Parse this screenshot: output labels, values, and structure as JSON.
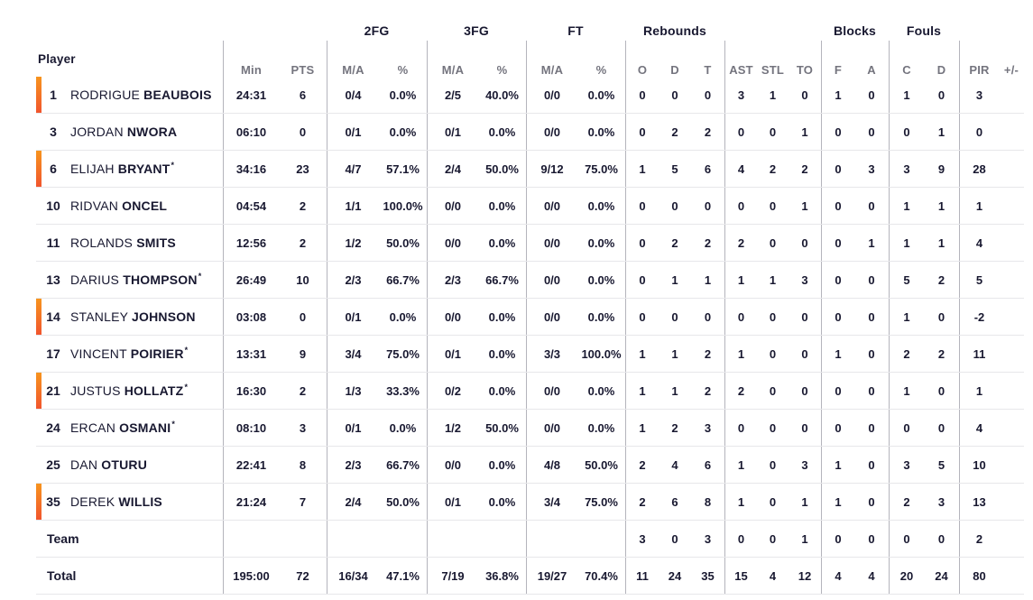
{
  "header": {
    "player_label": "Player",
    "groups": {
      "fg2": "2FG",
      "fg3": "3FG",
      "ft": "FT",
      "rebounds": "Rebounds",
      "blocks": "Blocks",
      "fouls": "Fouls"
    },
    "columns": [
      "Min",
      "PTS",
      "M/A",
      "%",
      "M/A",
      "%",
      "M/A",
      "%",
      "O",
      "D",
      "T",
      "AST",
      "STL",
      "TO",
      "F",
      "A",
      "C",
      "D",
      "PIR",
      "+/-"
    ]
  },
  "starter_mark": "*",
  "colors": {
    "accent_gradient_top": "#f7941e",
    "accent_gradient_bottom": "#f1552d",
    "text_dark": "#181830",
    "text_gray": "#74747e",
    "divider_vertical": "#b4b4bc",
    "divider_horizontal": "#e7e7ea"
  },
  "rows": [
    {
      "type": "player",
      "number": "1",
      "first": "RODRIGUE",
      "last": "BEAUBOIS",
      "starter": false,
      "on_court": true,
      "stats": [
        "24:31",
        "6",
        "0/4",
        "0.0%",
        "2/5",
        "40.0%",
        "0/0",
        "0.0%",
        "0",
        "0",
        "0",
        "3",
        "1",
        "0",
        "1",
        "0",
        "1",
        "0",
        "3",
        ""
      ]
    },
    {
      "type": "player",
      "number": "3",
      "first": "JORDAN",
      "last": "NWORA",
      "starter": false,
      "on_court": false,
      "stats": [
        "06:10",
        "0",
        "0/1",
        "0.0%",
        "0/1",
        "0.0%",
        "0/0",
        "0.0%",
        "0",
        "2",
        "2",
        "0",
        "0",
        "1",
        "0",
        "0",
        "0",
        "1",
        "0",
        ""
      ]
    },
    {
      "type": "player",
      "number": "6",
      "first": "ELIJAH",
      "last": "BRYANT",
      "starter": true,
      "on_court": true,
      "stats": [
        "34:16",
        "23",
        "4/7",
        "57.1%",
        "2/4",
        "50.0%",
        "9/12",
        "75.0%",
        "1",
        "5",
        "6",
        "4",
        "2",
        "2",
        "0",
        "3",
        "3",
        "9",
        "28",
        ""
      ]
    },
    {
      "type": "player",
      "number": "10",
      "first": "RIDVAN",
      "last": "ONCEL",
      "starter": false,
      "on_court": false,
      "stats": [
        "04:54",
        "2",
        "1/1",
        "100.0%",
        "0/0",
        "0.0%",
        "0/0",
        "0.0%",
        "0",
        "0",
        "0",
        "0",
        "0",
        "1",
        "0",
        "0",
        "1",
        "1",
        "1",
        ""
      ]
    },
    {
      "type": "player",
      "number": "11",
      "first": "ROLANDS",
      "last": "SMITS",
      "starter": false,
      "on_court": false,
      "stats": [
        "12:56",
        "2",
        "1/2",
        "50.0%",
        "0/0",
        "0.0%",
        "0/0",
        "0.0%",
        "0",
        "2",
        "2",
        "2",
        "0",
        "0",
        "0",
        "1",
        "1",
        "1",
        "4",
        ""
      ]
    },
    {
      "type": "player",
      "number": "13",
      "first": "DARIUS",
      "last": "THOMPSON",
      "starter": true,
      "on_court": false,
      "stats": [
        "26:49",
        "10",
        "2/3",
        "66.7%",
        "2/3",
        "66.7%",
        "0/0",
        "0.0%",
        "0",
        "1",
        "1",
        "1",
        "1",
        "3",
        "0",
        "0",
        "5",
        "2",
        "5",
        ""
      ]
    },
    {
      "type": "player",
      "number": "14",
      "first": "STANLEY",
      "last": "JOHNSON",
      "starter": false,
      "on_court": true,
      "stats": [
        "03:08",
        "0",
        "0/1",
        "0.0%",
        "0/0",
        "0.0%",
        "0/0",
        "0.0%",
        "0",
        "0",
        "0",
        "0",
        "0",
        "0",
        "0",
        "0",
        "1",
        "0",
        "-2",
        ""
      ]
    },
    {
      "type": "player",
      "number": "17",
      "first": "VINCENT",
      "last": "POIRIER",
      "starter": true,
      "on_court": false,
      "stats": [
        "13:31",
        "9",
        "3/4",
        "75.0%",
        "0/1",
        "0.0%",
        "3/3",
        "100.0%",
        "1",
        "1",
        "2",
        "1",
        "0",
        "0",
        "1",
        "0",
        "2",
        "2",
        "11",
        ""
      ]
    },
    {
      "type": "player",
      "number": "21",
      "first": "JUSTUS",
      "last": "HOLLATZ",
      "starter": true,
      "on_court": true,
      "stats": [
        "16:30",
        "2",
        "1/3",
        "33.3%",
        "0/2",
        "0.0%",
        "0/0",
        "0.0%",
        "1",
        "1",
        "2",
        "2",
        "0",
        "0",
        "0",
        "0",
        "1",
        "0",
        "1",
        ""
      ]
    },
    {
      "type": "player",
      "number": "24",
      "first": "ERCAN",
      "last": "OSMANI",
      "starter": true,
      "on_court": false,
      "stats": [
        "08:10",
        "3",
        "0/1",
        "0.0%",
        "1/2",
        "50.0%",
        "0/0",
        "0.0%",
        "1",
        "2",
        "3",
        "0",
        "0",
        "0",
        "0",
        "0",
        "0",
        "0",
        "4",
        ""
      ]
    },
    {
      "type": "player",
      "number": "25",
      "first": "DAN",
      "last": "OTURU",
      "starter": false,
      "on_court": false,
      "stats": [
        "22:41",
        "8",
        "2/3",
        "66.7%",
        "0/0",
        "0.0%",
        "4/8",
        "50.0%",
        "2",
        "4",
        "6",
        "1",
        "0",
        "3",
        "1",
        "0",
        "3",
        "5",
        "10",
        ""
      ]
    },
    {
      "type": "player",
      "number": "35",
      "first": "DEREK",
      "last": "WILLIS",
      "starter": false,
      "on_court": true,
      "stats": [
        "21:24",
        "7",
        "2/4",
        "50.0%",
        "0/1",
        "0.0%",
        "3/4",
        "75.0%",
        "2",
        "6",
        "8",
        "1",
        "0",
        "1",
        "1",
        "0",
        "2",
        "3",
        "13",
        ""
      ]
    },
    {
      "type": "team",
      "label": "Team",
      "stats": [
        "",
        "",
        "",
        "",
        "",
        "",
        "",
        "",
        "3",
        "0",
        "3",
        "0",
        "0",
        "1",
        "0",
        "0",
        "0",
        "0",
        "2",
        ""
      ]
    },
    {
      "type": "total",
      "label": "Total",
      "stats": [
        "195:00",
        "72",
        "16/34",
        "47.1%",
        "7/19",
        "36.8%",
        "19/27",
        "70.4%",
        "11",
        "24",
        "35",
        "15",
        "4",
        "12",
        "4",
        "4",
        "20",
        "24",
        "80",
        ""
      ]
    }
  ]
}
